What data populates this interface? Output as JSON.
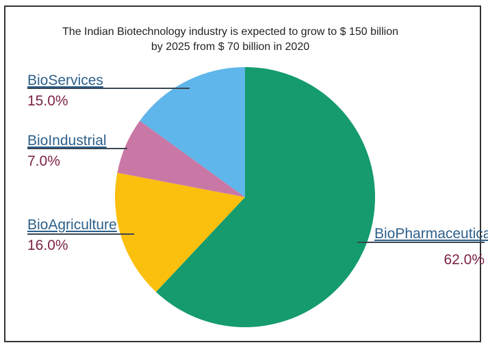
{
  "chart_data": {
    "type": "pie",
    "title_lines": [
      "The Indian Biotechnology industry is expected to grow to $ 150 billion",
      "by 2025 from $ 70 billion in 2020"
    ],
    "slices": [
      {
        "name": "BioPharmaceuticals",
        "value": 62.0,
        "label": "62.0%",
        "color": "#159b6e"
      },
      {
        "name": "BioAgriculture",
        "value": 16.0,
        "label": "16.0%",
        "color": "#fbbf0e"
      },
      {
        "name": "BioIndustrial",
        "value": 7.0,
        "label": "7.0%",
        "color": "#c978a6"
      },
      {
        "name": "BioServices",
        "value": 15.0,
        "label": "15.0%",
        "color": "#5fb6ea"
      }
    ],
    "start_angle_deg": 0,
    "direction": "clockwise",
    "leader_line_color": "#3a4652"
  }
}
